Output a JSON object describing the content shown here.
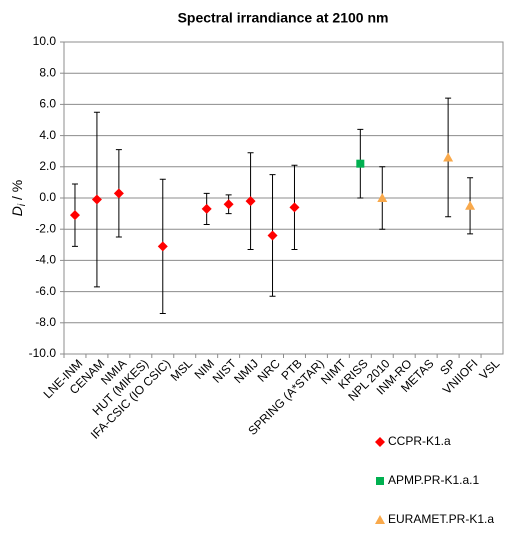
{
  "chart_data": {
    "type": "errorbar",
    "title": "Spectral irrandiance at 2100 nm",
    "y_label": {
      "symbol": "D",
      "subscript": "i",
      "unit": " / %"
    },
    "categories": [
      "LNE-INM",
      "CENAM",
      "NMIA",
      "HUT (MIKES)",
      "IFA-CSIC (IO CSIC)",
      "MSL",
      "NIM",
      "NIST",
      "NMIJ",
      "NRC",
      "PTB",
      "SPRING (A*STAR)",
      "NIMT",
      "KRISS",
      "NPL 2010",
      "INM-RO",
      "METAS",
      "SP",
      "VNIIOFI",
      "VSL"
    ],
    "ylim": [
      -10,
      10
    ],
    "yticks": [
      {
        "value": -10,
        "label": "-10.0"
      },
      {
        "value": -8,
        "label": "-8.0"
      },
      {
        "value": -6,
        "label": "-6.0"
      },
      {
        "value": -4,
        "label": "-4.0"
      },
      {
        "value": -2,
        "label": "-2.0"
      },
      {
        "value": 0,
        "label": "0.0"
      },
      {
        "value": 2,
        "label": "2.0"
      },
      {
        "value": 4,
        "label": "4.0"
      },
      {
        "value": 6,
        "label": "6.0"
      },
      {
        "value": 8,
        "label": "8.0"
      },
      {
        "value": 10,
        "label": "10.0"
      }
    ],
    "grid": true,
    "legend": "bottom-right",
    "series": [
      {
        "name": "CCPR-K1.a",
        "color": "#ff0000",
        "marker": "diamond",
        "values": [
          -1.1,
          -0.1,
          0.3,
          null,
          -3.1,
          null,
          -0.7,
          -0.4,
          -0.2,
          -2.4,
          -0.6,
          null,
          null,
          null,
          null,
          null,
          null,
          null,
          null,
          null
        ],
        "errors": [
          2.0,
          5.6,
          2.8,
          null,
          4.3,
          null,
          1.0,
          0.6,
          3.1,
          3.9,
          2.7,
          null,
          null,
          null,
          null,
          null,
          null,
          null,
          null,
          null
        ]
      },
      {
        "name": "APMP.PR-K1.a.1",
        "color": "#00b050",
        "marker": "square",
        "values": [
          null,
          null,
          null,
          null,
          null,
          null,
          null,
          null,
          null,
          null,
          null,
          null,
          null,
          2.2,
          null,
          null,
          null,
          null,
          null,
          null
        ],
        "errors": [
          null,
          null,
          null,
          null,
          null,
          null,
          null,
          null,
          null,
          null,
          null,
          null,
          null,
          2.2,
          null,
          null,
          null,
          null,
          null,
          null
        ]
      },
      {
        "name": "EURAMET.PR-K1.a",
        "color": "#f9a94b",
        "marker": "triangle",
        "values": [
          null,
          null,
          null,
          null,
          null,
          null,
          null,
          null,
          null,
          null,
          null,
          null,
          null,
          null,
          0.0,
          null,
          null,
          2.6,
          -0.5,
          null
        ],
        "errors": [
          null,
          null,
          null,
          null,
          null,
          null,
          null,
          null,
          null,
          null,
          null,
          null,
          null,
          null,
          2.0,
          null,
          null,
          3.8,
          1.8,
          null
        ]
      }
    ]
  }
}
